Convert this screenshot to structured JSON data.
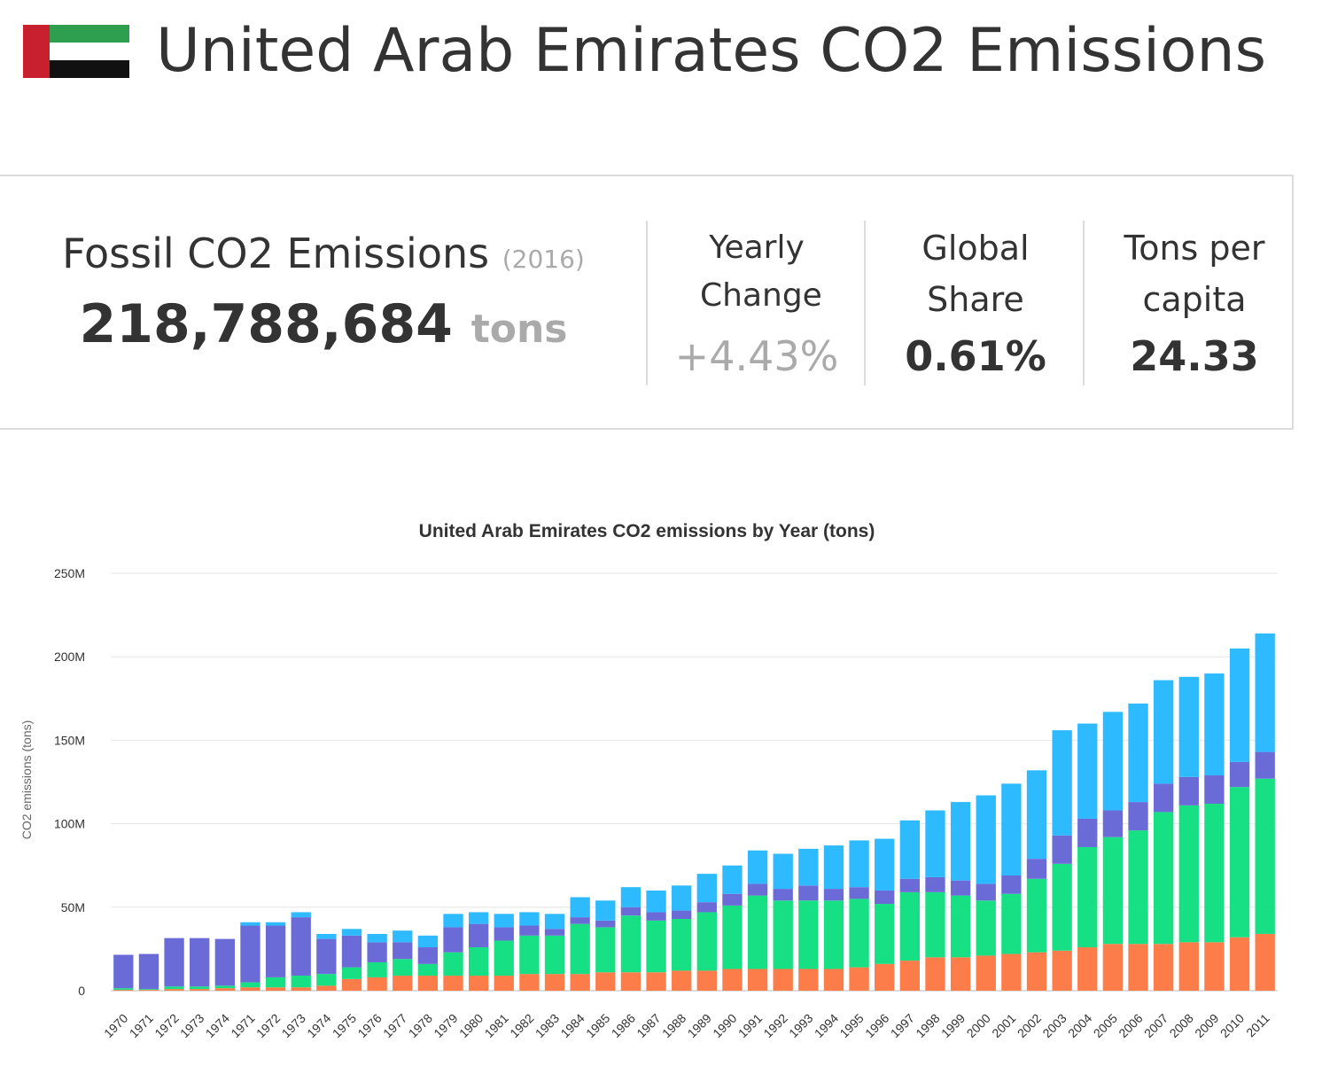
{
  "header": {
    "title": "United Arab Emirates CO2 Emissions",
    "flag_icon": "uae-flag-icon",
    "flag_colors": {
      "red": "#c8202f",
      "green": "#2e9e4f",
      "white": "#ffffff",
      "black": "#111111"
    }
  },
  "stats": {
    "fossil": {
      "label": "Fossil CO2 Emissions",
      "year": "(2016)",
      "value": "218,788,684",
      "unit": "tons"
    },
    "yearly_change": {
      "label": "Yearly Change",
      "value": "+4.43%"
    },
    "global_share": {
      "label": "Global Share",
      "value": "0.61%"
    },
    "per_capita": {
      "label": "Tons per capita",
      "value": "24.33"
    }
  },
  "chart_data": {
    "type": "bar",
    "stacked": true,
    "title": "United Arab Emirates CO2 emissions by Year (tons)",
    "ylabel": "CO2 emissions (tons)",
    "ylim": [
      0,
      250000000
    ],
    "yticks": [
      0,
      50000000,
      100000000,
      150000000,
      200000000,
      250000000
    ],
    "ytick_labels": [
      "0",
      "50M",
      "100M",
      "150M",
      "200M",
      "250M"
    ],
    "grid": true,
    "legend": "none",
    "categories": [
      "1970",
      "1971",
      "1972",
      "1973",
      "1974",
      "1971",
      "1972",
      "1973",
      "1974",
      "1975",
      "1976",
      "1977",
      "1978",
      "1979",
      "1980",
      "1981",
      "1982",
      "1983",
      "1984",
      "1985",
      "1986",
      "1987",
      "1988",
      "1989",
      "1990",
      "1991",
      "1992",
      "1993",
      "1994",
      "1995",
      "1996",
      "1997",
      "1998",
      "1999",
      "2000",
      "2001",
      "2002",
      "2003",
      "2004",
      "2005",
      "2006",
      "2007",
      "2008",
      "2009",
      "2010",
      "2011"
    ],
    "series": [
      {
        "color": "#fc7d49",
        "values": [
          0.5,
          0.5,
          1,
          1,
          1.5,
          2,
          2,
          2,
          3,
          7,
          8,
          9,
          9,
          9,
          9,
          9,
          10,
          10,
          10,
          11,
          11,
          11,
          12,
          12,
          13,
          13,
          13,
          13,
          13,
          14,
          16,
          18,
          20,
          20,
          21,
          22,
          23,
          24,
          26,
          28,
          28,
          28,
          29,
          29,
          32,
          34
        ]
      },
      {
        "color": "#17e084",
        "values": [
          1,
          0.5,
          1.5,
          1.5,
          1.5,
          3,
          6,
          7,
          7,
          7,
          9,
          10,
          7,
          14,
          17,
          21,
          23,
          23,
          30,
          27,
          34,
          31,
          31,
          35,
          38,
          44,
          41,
          41,
          41,
          41,
          36,
          41,
          39,
          37,
          33,
          36,
          44,
          52,
          60,
          64,
          68,
          79,
          82,
          83,
          90,
          93
        ]
      },
      {
        "color": "#6b6bd7",
        "values": [
          20,
          21,
          29,
          29,
          28,
          34,
          31,
          35,
          21,
          19,
          12,
          10,
          10,
          15,
          14,
          8,
          6,
          4,
          4,
          4,
          5,
          5,
          5,
          6,
          7,
          7,
          7,
          9,
          7,
          7,
          8,
          8,
          9,
          9,
          10,
          11,
          12,
          17,
          17,
          16,
          17,
          17,
          17,
          17,
          15,
          16
        ]
      },
      {
        "color": "#2ebaff",
        "values": [
          0,
          0,
          0,
          0,
          0,
          2,
          2,
          3,
          3,
          4,
          5,
          7,
          7,
          8,
          7,
          8,
          8,
          9,
          12,
          12,
          12,
          13,
          15,
          17,
          17,
          20,
          21,
          22,
          26,
          28,
          31,
          35,
          40,
          47,
          53,
          55,
          53,
          63,
          57,
          59,
          59,
          62,
          60,
          61,
          68,
          71
        ]
      }
    ]
  }
}
